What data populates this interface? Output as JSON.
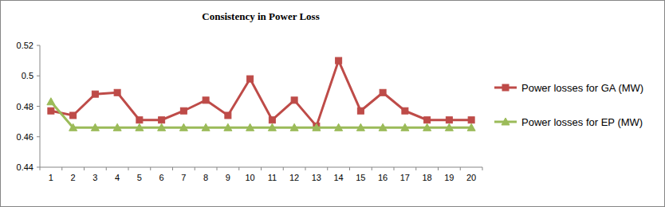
{
  "chart_data": {
    "type": "line",
    "title": "Consistency in Power Loss",
    "categories": [
      "1",
      "2",
      "3",
      "4",
      "5",
      "6",
      "7",
      "8",
      "9",
      "10",
      "11",
      "12",
      "13",
      "14",
      "15",
      "16",
      "17",
      "18",
      "19",
      "20"
    ],
    "series": [
      {
        "name": "Power losses for GA (MW)",
        "color": "#be4b48",
        "marker": "square",
        "line_style": "solid",
        "values": [
          0.477,
          0.474,
          0.488,
          0.489,
          0.471,
          0.471,
          0.477,
          0.484,
          0.474,
          0.498,
          0.471,
          0.484,
          0.467,
          0.51,
          0.477,
          0.489,
          0.477,
          0.471,
          0.471,
          0.471
        ]
      },
      {
        "name": "Power losses for EP (MW)",
        "color": "#9bbb59",
        "marker": "triangle",
        "line_style": "solid",
        "values": [
          0.483,
          0.466,
          0.466,
          0.466,
          0.466,
          0.466,
          0.466,
          0.466,
          0.466,
          0.466,
          0.466,
          0.466,
          0.466,
          0.466,
          0.466,
          0.466,
          0.466,
          0.466,
          0.466,
          0.466
        ]
      }
    ],
    "ylim": [
      0.44,
      0.52
    ],
    "yticks": [
      0.44,
      0.46,
      0.48,
      0.5,
      0.52
    ],
    "grid": false,
    "legend": "right"
  }
}
